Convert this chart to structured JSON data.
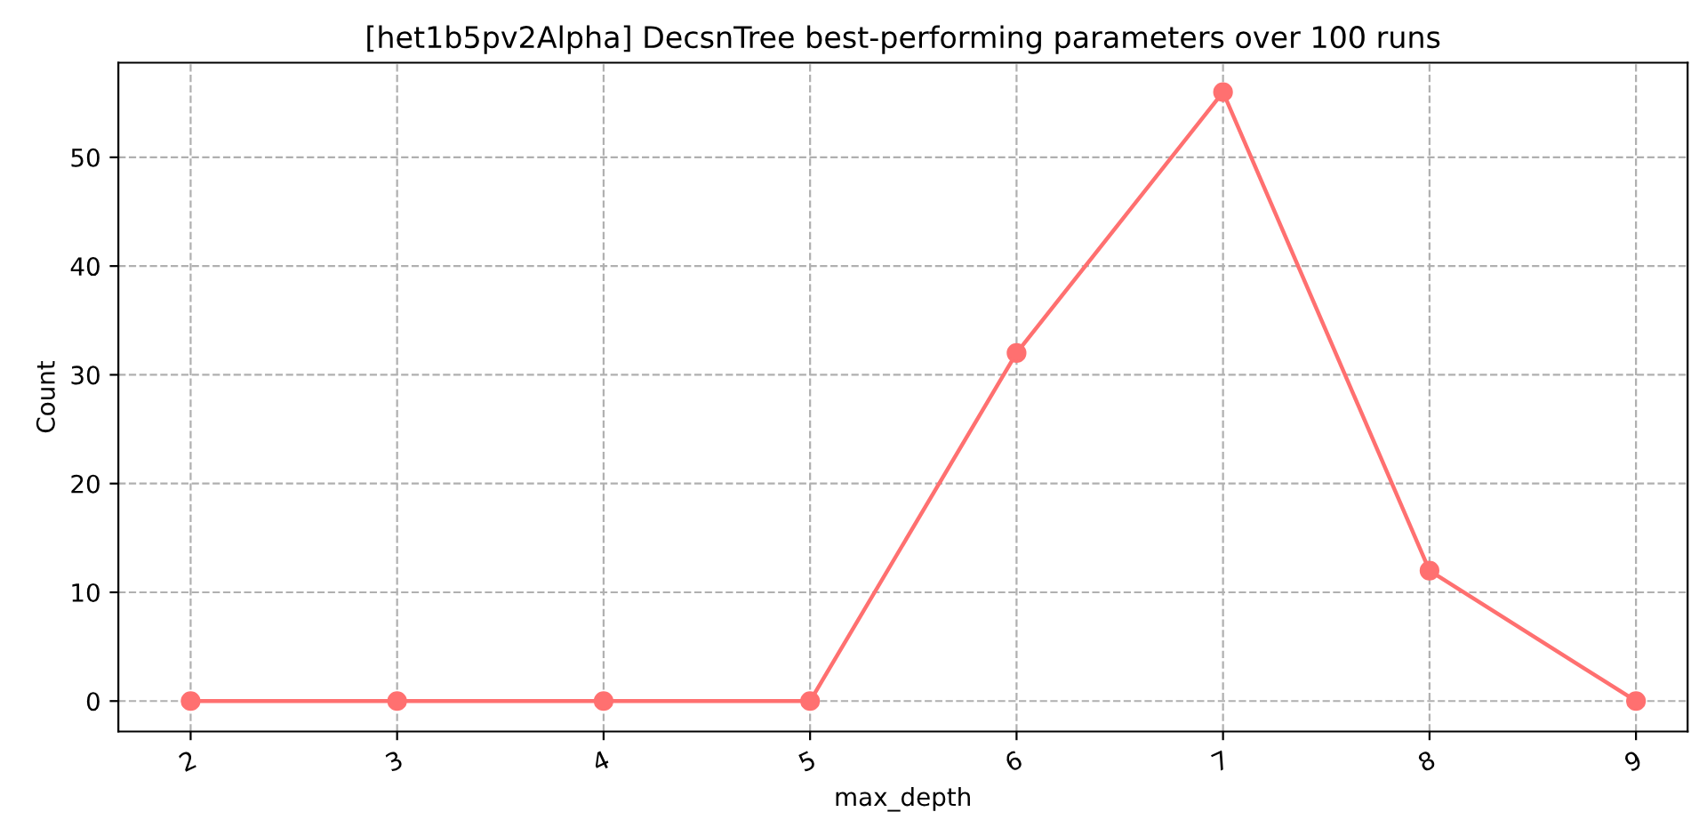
{
  "chart_data": {
    "type": "line",
    "title": "[het1b5pv2Alpha] DecsnTree best-performing parameters over 100 runs",
    "xlabel": "max_depth",
    "ylabel": "Count",
    "x": [
      2,
      3,
      4,
      5,
      6,
      7,
      8,
      9
    ],
    "series": [
      {
        "color": "#ff7070",
        "values": [
          0,
          0,
          0,
          0,
          32,
          56,
          12,
          0
        ]
      }
    ],
    "xlim": [
      1.65,
      9.25
    ],
    "xticks": [
      2,
      3,
      4,
      5,
      6,
      7,
      8,
      9
    ],
    "ylim": [
      -2.8,
      58.7
    ],
    "yticks": [
      0,
      10,
      20,
      30,
      40,
      50
    ],
    "grid": true,
    "marker": "circle",
    "line_style": "solid"
  }
}
